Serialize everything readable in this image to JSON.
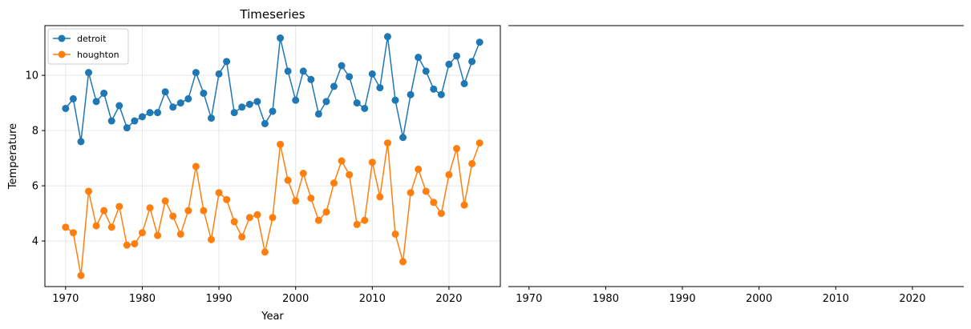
{
  "chart_data": [
    {
      "type": "line",
      "title": "Timeseries",
      "xlabel": "Year",
      "ylabel": "Temperature",
      "xlim": [
        1967.3,
        2026.7
      ],
      "ylim": [
        2.35,
        11.8
      ],
      "xticks": [
        1970,
        1980,
        1990,
        2000,
        2010,
        2020
      ],
      "yticks": [
        4,
        6,
        8,
        10
      ],
      "grid": true,
      "markers": "circle",
      "legend_position": "top-left",
      "x": [
        1970,
        1971,
        1972,
        1973,
        1974,
        1975,
        1976,
        1977,
        1978,
        1979,
        1980,
        1981,
        1982,
        1983,
        1984,
        1985,
        1986,
        1987,
        1988,
        1989,
        1990,
        1991,
        1992,
        1993,
        1994,
        1995,
        1996,
        1997,
        1998,
        1999,
        2000,
        2001,
        2002,
        2003,
        2004,
        2005,
        2006,
        2007,
        2008,
        2009,
        2010,
        2011,
        2012,
        2013,
        2014,
        2015,
        2016,
        2017,
        2018,
        2019,
        2020,
        2021,
        2022,
        2023,
        2024
      ],
      "series": [
        {
          "name": "detroit",
          "color": "#1f77b4",
          "values": [
            8.8,
            9.15,
            7.6,
            10.1,
            9.05,
            9.35,
            8.35,
            8.9,
            8.1,
            8.35,
            8.5,
            8.65,
            8.65,
            9.4,
            8.85,
            9.0,
            9.15,
            10.1,
            9.35,
            8.45,
            10.05,
            10.5,
            8.65,
            8.85,
            8.95,
            9.05,
            8.25,
            8.7,
            11.35,
            10.15,
            9.1,
            10.15,
            9.85,
            8.6,
            9.05,
            9.6,
            10.35,
            9.95,
            9.0,
            8.8,
            10.05,
            9.55,
            11.4,
            9.1,
            7.75,
            9.3,
            10.65,
            10.15,
            9.5,
            9.3,
            10.4,
            10.7,
            9.7,
            10.5,
            11.2
          ]
        },
        {
          "name": "houghton",
          "color": "#ff7f0e",
          "values": [
            4.5,
            4.3,
            2.75,
            5.8,
            4.55,
            5.1,
            4.5,
            5.25,
            3.85,
            3.9,
            4.3,
            5.2,
            4.2,
            5.45,
            4.9,
            4.25,
            5.1,
            6.7,
            5.1,
            4.05,
            5.75,
            5.5,
            4.7,
            4.15,
            4.85,
            4.95,
            3.6,
            4.85,
            7.5,
            6.2,
            5.45,
            6.45,
            5.55,
            4.75,
            5.05,
            6.1,
            6.9,
            6.4,
            4.6,
            4.75,
            6.85,
            5.6,
            7.55,
            4.25,
            3.25,
            5.75,
            6.6,
            5.8,
            5.4,
            5.0,
            6.4,
            7.35,
            5.3,
            6.8,
            7.55
          ]
        }
      ]
    },
    {
      "type": "line",
      "title": "",
      "xlabel": "",
      "ylabel": "",
      "xlim": [
        1967.3,
        2026.7
      ],
      "xticks": [
        1970,
        1980,
        1990,
        2000,
        2010,
        2020
      ],
      "series": []
    }
  ]
}
